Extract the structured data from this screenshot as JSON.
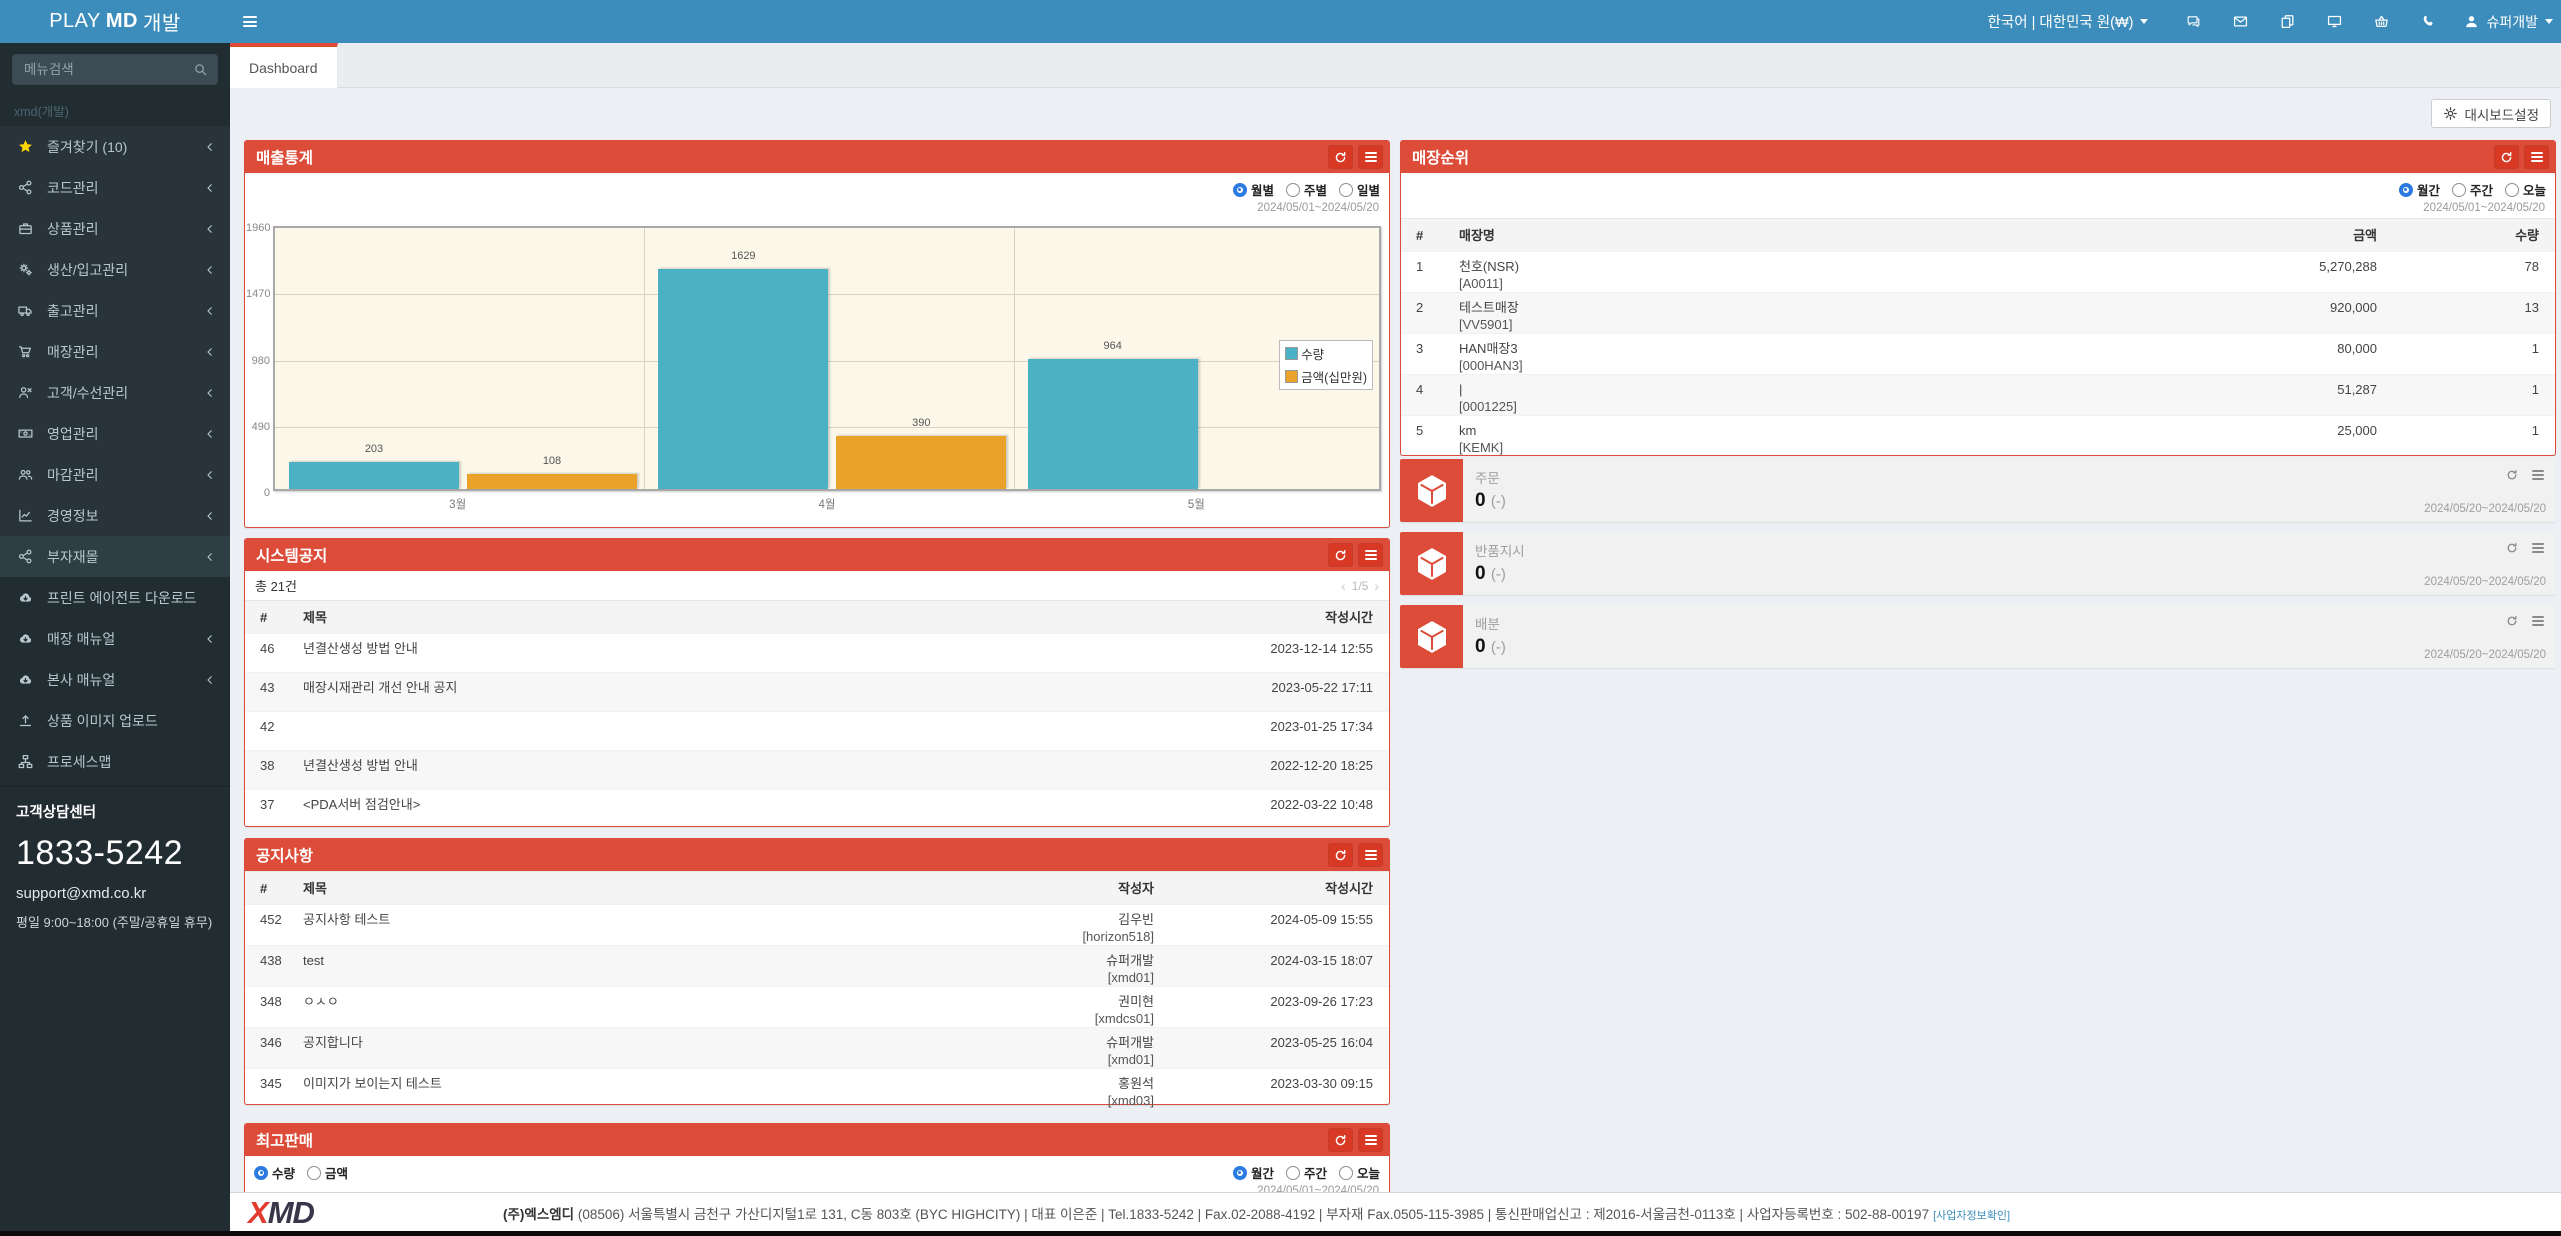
{
  "navbar": {
    "logo_play": "PLAY",
    "logo_md": "MD",
    "logo_dev": "개발",
    "locale": "한국어 | 대한민국 원(₩)",
    "user": "슈퍼개발",
    "icons": [
      "comments-icon",
      "envelope-icon",
      "copy-icon",
      "desktop-icon",
      "basket-icon",
      "phone-icon"
    ]
  },
  "tabs": {
    "dashboard": "Dashboard"
  },
  "settings_button": "대시보드설정",
  "sidebar": {
    "search_placeholder": "메뉴검색",
    "header": "xmd(개발)",
    "menu": [
      {
        "label": "즐겨찾기 (10)",
        "icon": "star-icon",
        "chevron": true,
        "group": 1
      },
      {
        "label": "코드관리",
        "icon": "share-nodes-icon",
        "chevron": true,
        "group": 1
      },
      {
        "label": "상품관리",
        "icon": "briefcase-icon",
        "chevron": true,
        "group": 1
      },
      {
        "label": "생산/입고관리",
        "icon": "cogs-icon",
        "chevron": true,
        "group": 1
      },
      {
        "label": "출고관리",
        "icon": "truck-icon",
        "chevron": true,
        "group": 1
      },
      {
        "label": "매장관리",
        "icon": "cart-icon",
        "chevron": true,
        "group": 1
      },
      {
        "label": "고객/수선관리",
        "icon": "user-x-icon",
        "chevron": true,
        "group": 1
      },
      {
        "label": "영업관리",
        "icon": "money-icon",
        "chevron": true,
        "group": 1
      },
      {
        "label": "마감관리",
        "icon": "users-icon",
        "chevron": true,
        "group": 1
      },
      {
        "label": "경영정보",
        "icon": "chart-line-icon",
        "chevron": true,
        "group": 1
      },
      {
        "label": "부자재몰",
        "icon": "share-nodes-icon",
        "chevron": true,
        "group": 1,
        "highlight": true
      },
      {
        "label": "프린트 에이전트 다운로드",
        "icon": "cloud-download-icon",
        "chevron": false,
        "group": 2
      },
      {
        "label": "매장 매뉴얼",
        "icon": "cloud-download-icon",
        "chevron": true,
        "group": 2
      },
      {
        "label": "본사 매뉴얼",
        "icon": "cloud-download-icon",
        "chevron": true,
        "group": 2
      },
      {
        "label": "상품 이미지 업로드",
        "icon": "upload-icon",
        "chevron": false,
        "group": 2
      },
      {
        "label": "프로세스맵",
        "icon": "sitemap-icon",
        "chevron": false,
        "group": 2
      }
    ],
    "contact": {
      "title": "고객상담센터",
      "phone": "1833-5242",
      "email": "support@xmd.co.kr",
      "hours": "평일 9:00~18:00 (주말/공휴일 휴무)"
    }
  },
  "sales_panel": {
    "title": "매출통계",
    "radios": [
      "월별",
      "주별",
      "일별"
    ],
    "selected": "월별",
    "date_range": "2024/05/01~2024/05/20"
  },
  "chart_data": {
    "type": "bar",
    "categories": [
      "3월",
      "4월",
      "5월"
    ],
    "series": [
      {
        "name": "수량",
        "color": "#4bb2c5",
        "values": [
          203,
          1629,
          964
        ]
      },
      {
        "name": "금액(십만원)",
        "color": "#eaa228",
        "values": [
          108,
          390,
          null
        ]
      }
    ],
    "ylim": [
      0,
      1960
    ],
    "yticks": [
      0,
      490,
      980,
      1470,
      1960
    ],
    "legend_position": "right",
    "background": "#fbf8ea"
  },
  "store_rank_panel": {
    "title": "매장순위",
    "radios": [
      "월간",
      "주간",
      "오늘"
    ],
    "selected": "월간",
    "date_range": "2024/05/01~2024/05/20",
    "columns": [
      "#",
      "매장명",
      "금액",
      "수량"
    ],
    "rows": [
      {
        "no": "1",
        "name": "천호(NSR)",
        "code": "[A0011]",
        "amount": "5,270,288",
        "qty": "78"
      },
      {
        "no": "2",
        "name": "테스트매장",
        "code": "[VV5901]",
        "amount": "920,000",
        "qty": "13"
      },
      {
        "no": "3",
        "name": "HAN매장3",
        "code": "[000HAN3]",
        "amount": "80,000",
        "qty": "1"
      },
      {
        "no": "4",
        "name": "|",
        "code": "[0001225]",
        "amount": "51,287",
        "qty": "1"
      },
      {
        "no": "5",
        "name": "km",
        "code": "[KEMK]",
        "amount": "25,000",
        "qty": "1"
      }
    ]
  },
  "system_notice_panel": {
    "title": "시스템공지",
    "total": "총 21건",
    "page": "1/5",
    "columns": [
      "#",
      "제목",
      "작성시간"
    ],
    "rows": [
      {
        "no": "46",
        "title": "년결산생성 방법 안내",
        "time": "2023-12-14 12:55"
      },
      {
        "no": "43",
        "title": "매장시재관리 개선 안내 공지",
        "time": "2023-05-22 17:11"
      },
      {
        "no": "42",
        "title": "",
        "time": "2023-01-25 17:34"
      },
      {
        "no": "38",
        "title": "년결산생성 방법 안내",
        "time": "2022-12-20 18:25"
      },
      {
        "no": "37",
        "title": "<PDA서버 점검안내>",
        "time": "2022-03-22 10:48"
      }
    ]
  },
  "notice_panel": {
    "title": "공지사항",
    "columns": [
      "#",
      "제목",
      "작성자",
      "작성시간"
    ],
    "rows": [
      {
        "no": "452",
        "title": "공지사항 테스트",
        "author": "김우빈",
        "author_id": "[horizon518]",
        "time": "2024-05-09 15:55"
      },
      {
        "no": "438",
        "title": "test",
        "author": "슈퍼개발",
        "author_id": "[xmd01]",
        "time": "2024-03-15 18:07"
      },
      {
        "no": "348",
        "title": "ㅇㅅㅇ",
        "author": "권미현",
        "author_id": "[xmdcs01]",
        "time": "2023-09-26 17:23"
      },
      {
        "no": "346",
        "title": "공지합니다",
        "author": "슈퍼개발",
        "author_id": "[xmd01]",
        "time": "2023-05-25 16:04"
      },
      {
        "no": "345",
        "title": "이미지가 보이는지 테스트",
        "author": "홍원석",
        "author_id": "[xmd03]",
        "time": "2023-03-30 09:15"
      }
    ]
  },
  "top_sales_panel": {
    "title": "최고판매",
    "left_radios": [
      "수량",
      "금액"
    ],
    "left_selected": "수량",
    "right_radios": [
      "월간",
      "주간",
      "오늘"
    ],
    "right_selected": "월간",
    "date_range": "2024/05/01~2024/05/20"
  },
  "info_boxes": [
    {
      "label": "주문",
      "value": "0",
      "sub": "(-)",
      "date_range": "2024/05/20~2024/05/20"
    },
    {
      "label": "반품지시",
      "value": "0",
      "sub": "(-)",
      "date_range": "2024/05/20~2024/05/20"
    },
    {
      "label": "배분",
      "value": "0",
      "sub": "(-)",
      "date_range": "2024/05/20~2024/05/20"
    }
  ],
  "footer": {
    "company": "(주)엑스엠디",
    "text": " (08506) 서울특별시 금천구 가산디지털1로 131, C동 803호 (BYC HIGHCITY) | 대표 이은준 | Tel.1833-5242 | Fax.02-2088-4192 | 부자재 Fax.0505-115-3985 | 통신판매업신고 : 제2016-서울금천-0113호 | 사업자등록번호 : 502-88-00197",
    "link": "[사업자정보확인]"
  }
}
